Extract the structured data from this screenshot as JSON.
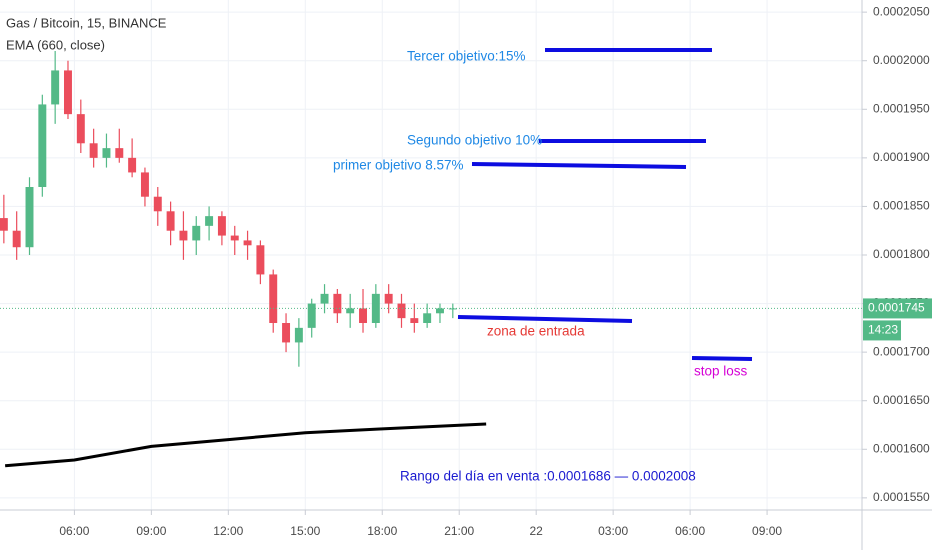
{
  "chart_data": {
    "type": "candlestick",
    "title": "Gas / Bitcoin, 15, BINANCE",
    "up_color": "#53b987",
    "down_color": "#eb4d5c",
    "x": [
      3.25,
      3.75,
      4.25,
      4.75,
      5.25,
      5.75,
      6.25,
      6.75,
      7.25,
      7.75,
      8.25,
      8.75,
      9.25,
      9.75,
      10.25,
      10.75,
      11.25,
      11.75,
      12.25,
      12.75,
      13.25,
      13.75,
      14.25,
      14.75,
      15.25,
      15.75,
      16.25,
      16.75,
      17.25,
      17.75,
      18.25,
      18.75,
      19.25,
      19.75,
      20.25,
      20.75
    ],
    "open": [
      0.0001838,
      0.0001825,
      0.0001808,
      0.000187,
      0.0001955,
      0.000199,
      0.0001945,
      0.0001915,
      0.00019,
      0.000191,
      0.00019,
      0.0001885,
      0.000186,
      0.0001845,
      0.0001825,
      0.0001815,
      0.000183,
      0.000184,
      0.000182,
      0.0001815,
      0.000181,
      0.000178,
      0.000173,
      0.000171,
      0.0001725,
      0.000175,
      0.000176,
      0.000174,
      0.0001745,
      0.000173,
      0.000176,
      0.000175,
      0.0001735,
      0.000173,
      0.000174,
      0.0001745
    ],
    "high": [
      0.0001862,
      0.0001845,
      0.000188,
      0.0001965,
      0.000201,
      0.0002,
      0.000196,
      0.000193,
      0.0001925,
      0.000193,
      0.000192,
      0.000189,
      0.000187,
      0.0001855,
      0.0001845,
      0.000184,
      0.000185,
      0.0001845,
      0.000183,
      0.0001825,
      0.0001815,
      0.0001785,
      0.000174,
      0.0001735,
      0.0001755,
      0.000177,
      0.0001765,
      0.000176,
      0.0001765,
      0.000177,
      0.000177,
      0.000176,
      0.000175,
      0.000175,
      0.000175,
      0.000175
    ],
    "low": [
      0.0001812,
      0.0001795,
      0.00018,
      0.000186,
      0.0001935,
      0.000194,
      0.0001905,
      0.000189,
      0.000189,
      0.0001895,
      0.000188,
      0.000185,
      0.000183,
      0.000181,
      0.0001795,
      0.00018,
      0.0001815,
      0.000181,
      0.00018,
      0.0001795,
      0.000177,
      0.000172,
      0.00017,
      0.0001685,
      0.0001715,
      0.000174,
      0.000173,
      0.0001725,
      0.000172,
      0.0001725,
      0.000174,
      0.0001725,
      0.000172,
      0.0001725,
      0.000173,
      0.0001735
    ],
    "close": [
      0.0001825,
      0.0001808,
      0.000187,
      0.0001955,
      0.000199,
      0.0001945,
      0.0001915,
      0.00019,
      0.000191,
      0.00019,
      0.0001885,
      0.000186,
      0.0001845,
      0.0001825,
      0.0001815,
      0.000183,
      0.000184,
      0.000182,
      0.0001815,
      0.000181,
      0.000178,
      0.000173,
      0.000171,
      0.0001725,
      0.000175,
      0.000176,
      0.000174,
      0.0001745,
      0.000173,
      0.000176,
      0.000175,
      0.0001735,
      0.000173,
      0.000174,
      0.0001745,
      0.0001745
    ],
    "ema": {
      "name": "EMA (660, close)",
      "color": "#000000",
      "x": [
        3.3,
        6,
        9,
        12,
        15,
        18,
        22.05
      ],
      "values": [
        0.0001583,
        0.0001589,
        0.0001603,
        0.000161,
        0.0001617,
        0.0001621,
        0.0001626
      ]
    },
    "xlim": [
      3.1,
      36.7
    ],
    "xticks": [
      {
        "value": 6,
        "label": "06:00"
      },
      {
        "value": 9,
        "label": "09:00"
      },
      {
        "value": 12,
        "label": "12:00"
      },
      {
        "value": 15,
        "label": "15:00"
      },
      {
        "value": 18,
        "label": "18:00"
      },
      {
        "value": 21,
        "label": "21:00"
      },
      {
        "value": 24,
        "label": "22"
      },
      {
        "value": 27,
        "label": "03:00"
      },
      {
        "value": 30,
        "label": "06:00"
      },
      {
        "value": 33,
        "label": "09:00"
      }
    ],
    "ylim": [
      0.00015375,
      0.00020625
    ],
    "yticks": [
      {
        "value": 0.000155,
        "label": "0.0001550"
      },
      {
        "value": 0.00016,
        "label": "0.0001600"
      },
      {
        "value": 0.000165,
        "label": "0.0001650"
      },
      {
        "value": 0.00017,
        "label": "0.0001700"
      },
      {
        "value": 0.000175,
        "label": "0.0001750"
      },
      {
        "value": 0.00018,
        "label": "0.0001800"
      },
      {
        "value": 0.000185,
        "label": "0.0001850"
      },
      {
        "value": 0.00019,
        "label": "0.0001900"
      },
      {
        "value": 0.000195,
        "label": "0.0001950"
      },
      {
        "value": 0.0002,
        "label": "0.0002000"
      },
      {
        "value": 0.000205,
        "label": "0.0002050"
      }
    ],
    "grid": true,
    "last_price": {
      "value": 0.0001745,
      "label": "0.0001745"
    },
    "countdown": "14:23",
    "annotations": [
      "Tercer objetivo:15%",
      "Segundo objetivo 10%",
      "primer objetivo 8.57%",
      "zona de entrada",
      "stop loss",
      "Rango del día en venta :0.0001686 — 0.0002008"
    ]
  }
}
